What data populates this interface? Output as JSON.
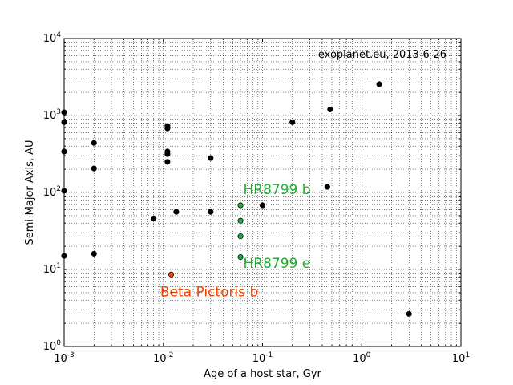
{
  "chart_data": {
    "type": "scatter",
    "title": "",
    "xlabel": "Age of a host star, Gyr",
    "ylabel": "Semi-Major Axis, AU",
    "xscale": "log",
    "yscale": "log",
    "xlim": [
      0.001,
      10
    ],
    "ylim": [
      1,
      10000
    ],
    "grid": true,
    "x_ticks": [
      {
        "value": 0.001,
        "base": "10",
        "exp": "-3"
      },
      {
        "value": 0.01,
        "base": "10",
        "exp": "-2"
      },
      {
        "value": 0.1,
        "base": "10",
        "exp": "-1"
      },
      {
        "value": 1,
        "base": "10",
        "exp": "0"
      },
      {
        "value": 10,
        "base": "10",
        "exp": "1"
      }
    ],
    "y_ticks": [
      {
        "value": 1,
        "base": "10",
        "exp": "0"
      },
      {
        "value": 10,
        "base": "10",
        "exp": "1"
      },
      {
        "value": 100,
        "base": "10",
        "exp": "2"
      },
      {
        "value": 1000,
        "base": "10",
        "exp": "3"
      },
      {
        "value": 10000,
        "base": "10",
        "exp": "4"
      }
    ],
    "series": [
      {
        "color": "#000000",
        "points": [
          {
            "x": 0.001,
            "y": 1100
          },
          {
            "x": 0.001,
            "y": 820
          },
          {
            "x": 0.001,
            "y": 340
          },
          {
            "x": 0.001,
            "y": 105
          },
          {
            "x": 0.001,
            "y": 15
          },
          {
            "x": 0.002,
            "y": 440
          },
          {
            "x": 0.002,
            "y": 205
          },
          {
            "x": 0.002,
            "y": 16
          },
          {
            "x": 0.008,
            "y": 46
          },
          {
            "x": 0.011,
            "y": 730
          },
          {
            "x": 0.011,
            "y": 680
          },
          {
            "x": 0.011,
            "y": 340
          },
          {
            "x": 0.011,
            "y": 315
          },
          {
            "x": 0.011,
            "y": 250
          },
          {
            "x": 0.0135,
            "y": 56
          },
          {
            "x": 0.03,
            "y": 280
          },
          {
            "x": 0.03,
            "y": 56
          },
          {
            "x": 0.1,
            "y": 68
          },
          {
            "x": 0.2,
            "y": 820
          },
          {
            "x": 0.45,
            "y": 118
          },
          {
            "x": 0.48,
            "y": 1200
          },
          {
            "x": 1.5,
            "y": 2550
          },
          {
            "x": 3,
            "y": 2.65
          }
        ]
      },
      {
        "color": "#22aa44",
        "points": [
          {
            "x": 0.06,
            "y": 68
          },
          {
            "x": 0.06,
            "y": 43
          },
          {
            "x": 0.06,
            "y": 27
          },
          {
            "x": 0.06,
            "y": 14.5
          }
        ]
      },
      {
        "color": "#ee4411",
        "points": [
          {
            "x": 0.012,
            "y": 8.6
          }
        ]
      }
    ],
    "annotations": [
      {
        "text": "HR8799 b",
        "x": 0.064,
        "y": 95,
        "color": "#22aa33"
      },
      {
        "text": "HR8799 e",
        "x": 0.064,
        "y": 10.5,
        "color": "#22aa33"
      },
      {
        "text": "Beta Pictoris b",
        "x": 0.0093,
        "y": 4.5,
        "color": "#ee4400"
      }
    ],
    "source_note": "exoplanet.eu, 2013-6-26"
  }
}
